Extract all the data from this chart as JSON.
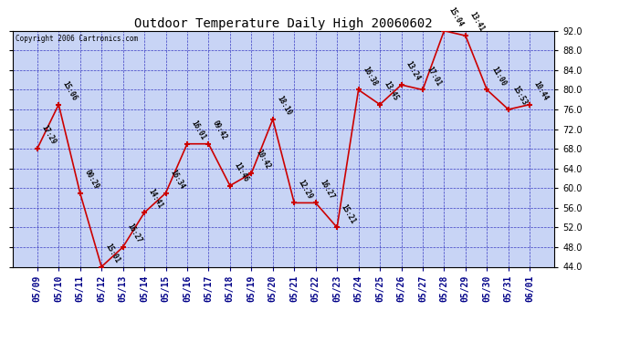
{
  "title": "Outdoor Temperature Daily High 20060602",
  "copyright": "Copyright 2006 Cartronics.com",
  "background_color": "#ffffff",
  "plot_bg_color": "#c8d4f5",
  "line_color": "#cc0000",
  "marker_color": "#cc0000",
  "grid_color": "#2222bb",
  "xlabel_color": "#000088",
  "ylim": [
    44.0,
    92.0
  ],
  "ytick_top": 92.0,
  "yticks": [
    44.0,
    48.0,
    52.0,
    56.0,
    60.0,
    64.0,
    68.0,
    72.0,
    76.0,
    80.0,
    84.0,
    88.0,
    92.0
  ],
  "dates": [
    "05/09",
    "05/10",
    "05/11",
    "05/12",
    "05/13",
    "05/14",
    "05/15",
    "05/16",
    "05/17",
    "05/18",
    "05/19",
    "05/20",
    "05/21",
    "05/22",
    "05/23",
    "05/24",
    "05/25",
    "05/26",
    "05/27",
    "05/28",
    "05/29",
    "05/30",
    "05/31",
    "06/01"
  ],
  "values": [
    68.0,
    77.0,
    59.0,
    44.0,
    48.0,
    55.0,
    59.0,
    69.0,
    69.0,
    60.5,
    63.0,
    74.0,
    57.0,
    57.0,
    52.0,
    80.0,
    77.0,
    81.0,
    80.0,
    92.0,
    91.0,
    80.0,
    76.0,
    77.0
  ],
  "labels": [
    "17:29",
    "15:06",
    "00:29",
    "15:01",
    "16:27",
    "14:41",
    "16:34",
    "16:01",
    "09:42",
    "11:46",
    "10:42",
    "18:10",
    "12:29",
    "16:27",
    "15:21",
    "16:38",
    "13:45",
    "13:24",
    "17:01",
    "15:04",
    "13:41",
    "11:00",
    "15:53",
    "10:44"
  ],
  "label_offsets_x": [
    3,
    3,
    3,
    3,
    3,
    3,
    3,
    3,
    3,
    3,
    3,
    3,
    3,
    3,
    3,
    3,
    3,
    3,
    3,
    3,
    3,
    3,
    3,
    3
  ],
  "label_offsets_y": [
    2,
    2,
    2,
    2,
    2,
    2,
    2,
    2,
    2,
    2,
    2,
    2,
    2,
    2,
    2,
    2,
    2,
    2,
    2,
    2,
    2,
    2,
    2,
    2
  ],
  "title_fontsize": 10,
  "tick_labelsize": 7,
  "label_fontsize": 5.5
}
